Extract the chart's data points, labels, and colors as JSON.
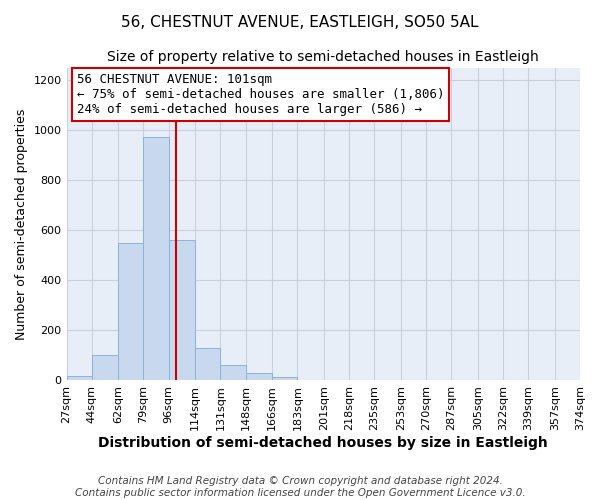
{
  "title": "56, CHESTNUT AVENUE, EASTLEIGH, SO50 5AL",
  "subtitle": "Size of property relative to semi-detached houses in Eastleigh",
  "xlabel": "Distribution of semi-detached houses by size in Eastleigh",
  "ylabel": "Number of semi-detached properties",
  "bin_edges": [
    27,
    44,
    62,
    79,
    96,
    114,
    131,
    148,
    166,
    183,
    201,
    218,
    235,
    253,
    270,
    287,
    305,
    322,
    339,
    357,
    374
  ],
  "bin_labels": [
    "27sqm",
    "44sqm",
    "62sqm",
    "79sqm",
    "96sqm",
    "114sqm",
    "131sqm",
    "148sqm",
    "166sqm",
    "183sqm",
    "201sqm",
    "218sqm",
    "235sqm",
    "253sqm",
    "270sqm",
    "287sqm",
    "305sqm",
    "322sqm",
    "339sqm",
    "357sqm",
    "374sqm"
  ],
  "bar_heights": [
    18,
    100,
    548,
    975,
    560,
    130,
    63,
    30,
    13,
    0,
    0,
    0,
    0,
    0,
    0,
    0,
    0,
    0,
    0,
    0
  ],
  "bar_color": "#c8d8ee",
  "bar_edge_color": "#8ab4d8",
  "vline_x": 101,
  "vline_color": "#cc0000",
  "ylim": [
    0,
    1250
  ],
  "yticks": [
    0,
    200,
    400,
    600,
    800,
    1000,
    1200
  ],
  "annotation_title": "56 CHESTNUT AVENUE: 101sqm",
  "annotation_line1": "← 75% of semi-detached houses are smaller (1,806)",
  "annotation_line2": "24% of semi-detached houses are larger (586) →",
  "annotation_box_color": "#ffffff",
  "annotation_box_edge_color": "#cc0000",
  "footer_line1": "Contains HM Land Registry data © Crown copyright and database right 2024.",
  "footer_line2": "Contains public sector information licensed under the Open Government Licence v3.0.",
  "background_color": "#ffffff",
  "plot_bg_color": "#e8eef8",
  "grid_color": "#c8d0e0",
  "title_fontsize": 11,
  "subtitle_fontsize": 10,
  "xlabel_fontsize": 10,
  "ylabel_fontsize": 9,
  "tick_fontsize": 8,
  "annotation_fontsize": 9,
  "footer_fontsize": 7.5
}
